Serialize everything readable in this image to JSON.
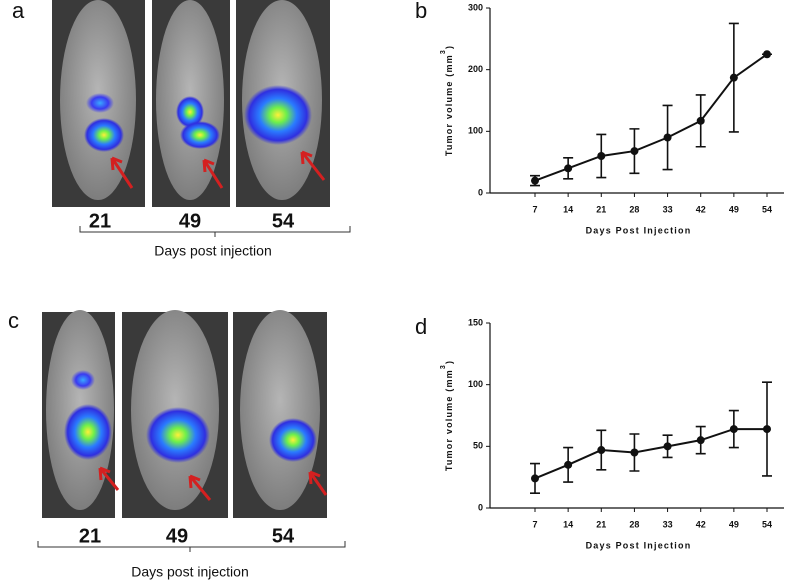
{
  "image_panels": [
    {
      "label": "a",
      "days": [
        "21",
        "49",
        "54"
      ],
      "caption": "Days post injection"
    },
    {
      "label": "c",
      "days": [
        "21",
        "49",
        "54"
      ],
      "caption": "Days post injection"
    }
  ],
  "chart_data": [
    {
      "type": "line",
      "panel_label": "b",
      "y_label": "Tumor volume (mm",
      "y_label_sup": "3",
      "y_label_end": ")",
      "x_label": "Days Post Injection",
      "categories": [
        "7",
        "14",
        "21",
        "28",
        "33",
        "42",
        "49",
        "54"
      ],
      "values": [
        20,
        40,
        60,
        68,
        90,
        117,
        187,
        225
      ],
      "errors": [
        8,
        17,
        35,
        36,
        52,
        42,
        88,
        0
      ],
      "color": "#111111",
      "ylim": [
        0,
        300
      ],
      "yticks": [
        0,
        100,
        200,
        300
      ]
    },
    {
      "type": "line",
      "panel_label": "d",
      "y_label": "Tumor volume (mm",
      "y_label_sup": "3",
      "y_label_end": ")",
      "x_label": "Days Post Injection",
      "categories": [
        "7",
        "14",
        "21",
        "28",
        "33",
        "42",
        "49",
        "54"
      ],
      "values": [
        24,
        35,
        47,
        45,
        50,
        55,
        64,
        64
      ],
      "errors": [
        12,
        14,
        16,
        15,
        9,
        11,
        15,
        38
      ],
      "color": "#111111",
      "ylim": [
        0,
        150
      ],
      "yticks": [
        0,
        50,
        100,
        150
      ]
    }
  ]
}
